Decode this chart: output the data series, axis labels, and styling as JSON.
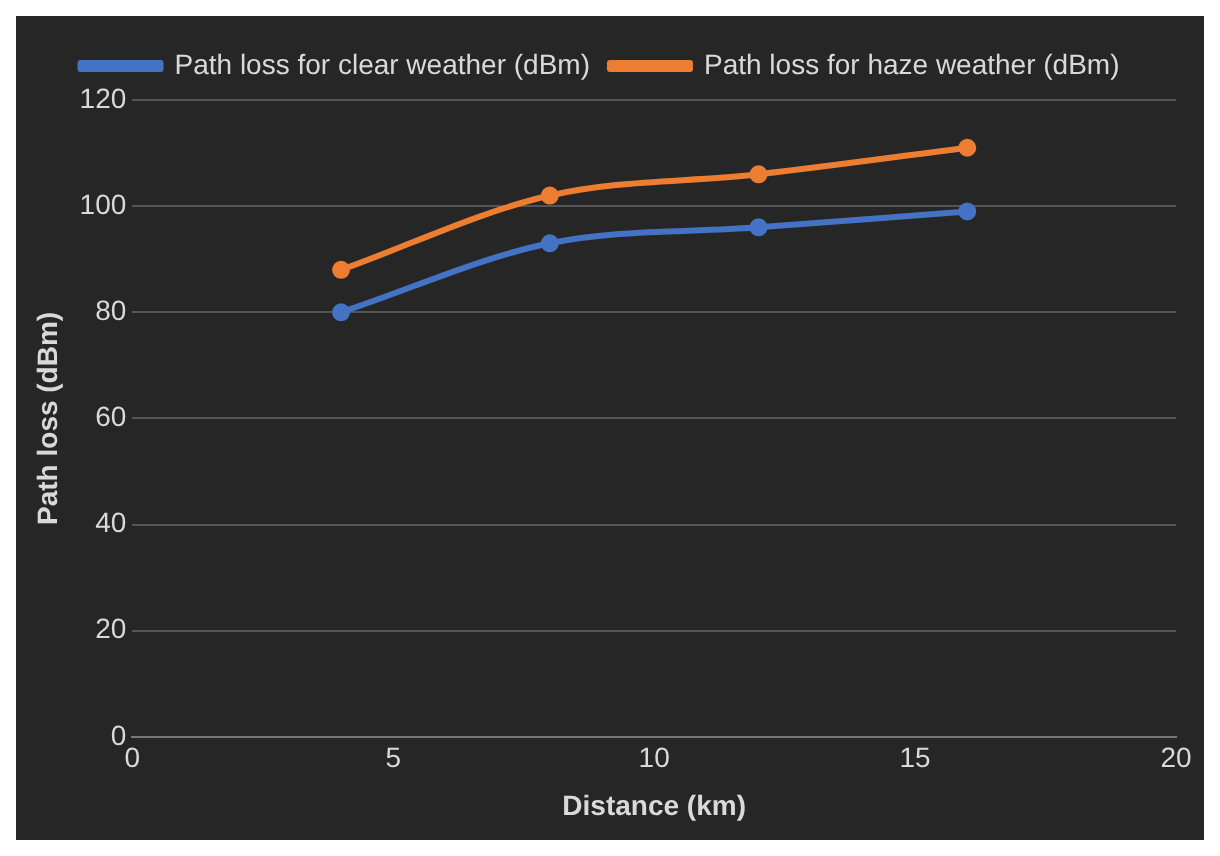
{
  "chart_data": {
    "type": "line",
    "xlabel": "Distance (km)",
    "ylabel": "Path loss (dBm)",
    "xlim": [
      0,
      20
    ],
    "xticks": [
      0,
      5,
      10,
      15,
      20
    ],
    "ylim": [
      0,
      120
    ],
    "yticks": [
      0,
      20,
      40,
      60,
      80,
      100,
      120
    ],
    "grid": "y",
    "legend": "top",
    "marker": "circle",
    "series": [
      {
        "name": "Path loss for clear weather (dBm)",
        "color": "#4472c4",
        "x": [
          4,
          8,
          12,
          16
        ],
        "values": [
          80,
          93,
          96,
          99
        ]
      },
      {
        "name": "Path loss for haze weather (dBm)",
        "color": "#ed7d31",
        "x": [
          4,
          8,
          12,
          16
        ],
        "values": [
          88,
          102,
          106,
          111
        ]
      }
    ]
  }
}
